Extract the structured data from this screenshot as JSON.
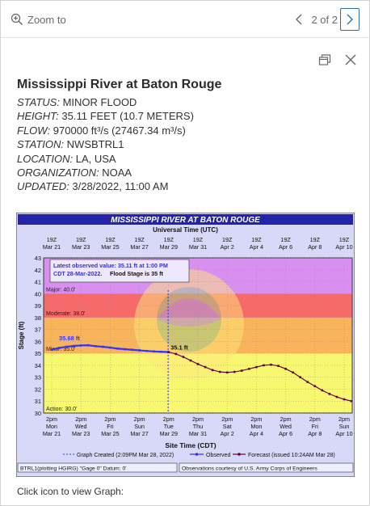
{
  "topbar": {
    "zoom_label": "Zoom to",
    "pager_text": "2 of 2"
  },
  "popup": {
    "title": "Mississippi River at Baton Rouge",
    "attributes": [
      {
        "label": "STATUS:",
        "value": "MINOR FLOOD"
      },
      {
        "label": "HEIGHT:",
        "value": "35.11 FEET (10.7 METERS)"
      },
      {
        "label": "FLOW:",
        "value": "970000 ft³/s (27467.34 m³/s)"
      },
      {
        "label": "STATION:",
        "value": "NWSBTRL1"
      },
      {
        "label": "LOCATION:",
        "value": "LA, USA"
      },
      {
        "label": "ORGANIZATION:",
        "value": "NOAA"
      },
      {
        "label": "UPDATED:",
        "value": "3/28/2022, 11:00 AM"
      }
    ],
    "caption": "Click icon to view Graph:"
  },
  "icons": {
    "zoom": "zoom-in-icon",
    "prev": "chevron-left-icon",
    "next": "chevron-right-icon",
    "dock": "dock-icon",
    "close": "close-icon"
  },
  "chart_data": {
    "type": "line",
    "title": "MISSISSIPPI RIVER AT BATON ROUGE",
    "top_axis_title": "Universal Time (UTC)",
    "top_ticks": [
      {
        "l1": "19Z",
        "l2": "Mar 21"
      },
      {
        "l1": "19Z",
        "l2": "Mar 23"
      },
      {
        "l1": "19Z",
        "l2": "Mar 25"
      },
      {
        "l1": "19Z",
        "l2": "Mar 27"
      },
      {
        "l1": "19Z",
        "l2": "Mar 29"
      },
      {
        "l1": "19Z",
        "l2": "Mar 31"
      },
      {
        "l1": "19Z",
        "l2": "Apr 2"
      },
      {
        "l1": "19Z",
        "l2": "Apr 4"
      },
      {
        "l1": "19Z",
        "l2": "Apr 6"
      },
      {
        "l1": "19Z",
        "l2": "Apr 8"
      },
      {
        "l1": "19Z",
        "l2": "Apr 10"
      }
    ],
    "bottom_ticks": [
      {
        "l1": "2pm",
        "l2": "Mon",
        "l3": "Mar 21"
      },
      {
        "l1": "2pm",
        "l2": "Wed",
        "l3": "Mar 23"
      },
      {
        "l1": "2pm",
        "l2": "Fri",
        "l3": "Mar 25"
      },
      {
        "l1": "2pm",
        "l2": "Sun",
        "l3": "Mar 27"
      },
      {
        "l1": "2pm",
        "l2": "Tue",
        "l3": "Mar 29"
      },
      {
        "l1": "2pm",
        "l2": "Thu",
        "l3": "Mar 31"
      },
      {
        "l1": "2pm",
        "l2": "Sat",
        "l3": "Apr 2"
      },
      {
        "l1": "2pm",
        "l2": "Mon",
        "l3": "Apr 4"
      },
      {
        "l1": "2pm",
        "l2": "Wed",
        "l3": "Apr 6"
      },
      {
        "l1": "2pm",
        "l2": "Fri",
        "l3": "Apr 8"
      },
      {
        "l1": "2pm",
        "l2": "Sun",
        "l3": "Apr 10"
      }
    ],
    "xlabel": "Site Time (CDT)",
    "ylabel": "Stage (ft)",
    "ylim": [
      30,
      43
    ],
    "yticks": [
      30,
      31,
      32,
      33,
      34,
      35,
      36,
      37,
      38,
      39,
      40,
      41,
      42,
      43
    ],
    "xlim_days": [
      0,
      20.8
    ],
    "bands": [
      {
        "name": "Action",
        "label": "Action: 30.0'",
        "from": 30,
        "to": 35,
        "color": "#f7f770"
      },
      {
        "name": "Minor",
        "label": "Minor: 35.0'",
        "from": 35,
        "to": 38,
        "color": "#f8b45a"
      },
      {
        "name": "Moderate",
        "label": "Moderate: 38.0'",
        "from": 38,
        "to": 40,
        "color": "#f66a6a"
      },
      {
        "name": "Major",
        "label": "Major: 40.0'",
        "from": 40,
        "to": 43,
        "color": "#d98ff0"
      }
    ],
    "info_box": {
      "line1": "Latest observed value: 35.11 ft at 1:00 PM",
      "line2": "CDT 28-Mar-2022.",
      "line3": "Flood Stage is 35 ft"
    },
    "labels": {
      "peak": "35.68 ft",
      "latest": "35.1 ft"
    },
    "series": [
      {
        "name": "Observed",
        "color": "#3333ff",
        "x": [
          0,
          0.5,
          1,
          1.5,
          2,
          2.5,
          3,
          3.5,
          4,
          4.5,
          5,
          5.5,
          6,
          6.5,
          7,
          7.5,
          7.96
        ],
        "y": [
          35.3,
          35.45,
          35.55,
          35.62,
          35.66,
          35.68,
          35.6,
          35.55,
          35.48,
          35.4,
          35.35,
          35.3,
          35.25,
          35.2,
          35.16,
          35.13,
          35.11
        ]
      },
      {
        "name": "Forecast (issued 10:24AM Mar 28)",
        "color": "#660044",
        "x": [
          8.0,
          8.5,
          9,
          9.5,
          10,
          10.5,
          11,
          11.5,
          12,
          12.5,
          13,
          13.5,
          14,
          14.5,
          15,
          15.5,
          16,
          16.5,
          17,
          17.5,
          18,
          18.5,
          19,
          19.5,
          20,
          20.5
        ],
        "y": [
          35.1,
          34.95,
          34.7,
          34.4,
          34.1,
          33.85,
          33.6,
          33.45,
          33.4,
          33.45,
          33.55,
          33.7,
          33.85,
          34.0,
          34.05,
          33.95,
          33.7,
          33.4,
          33.0,
          32.6,
          32.25,
          31.9,
          31.6,
          31.35,
          31.15,
          31.0
        ]
      }
    ],
    "legend": {
      "created": "Graph Created (2:09PM Mar 28, 2022)",
      "observed": "Observed",
      "forecast": "Forecast (issued 10:24AM Mar 28)"
    },
    "footer_left": "BTRL1(plotting HGIRG) \"Gage 0\" Datum: 0'",
    "footer_right": "Observations courtesy of U.S. Army Corps of Engineers"
  }
}
